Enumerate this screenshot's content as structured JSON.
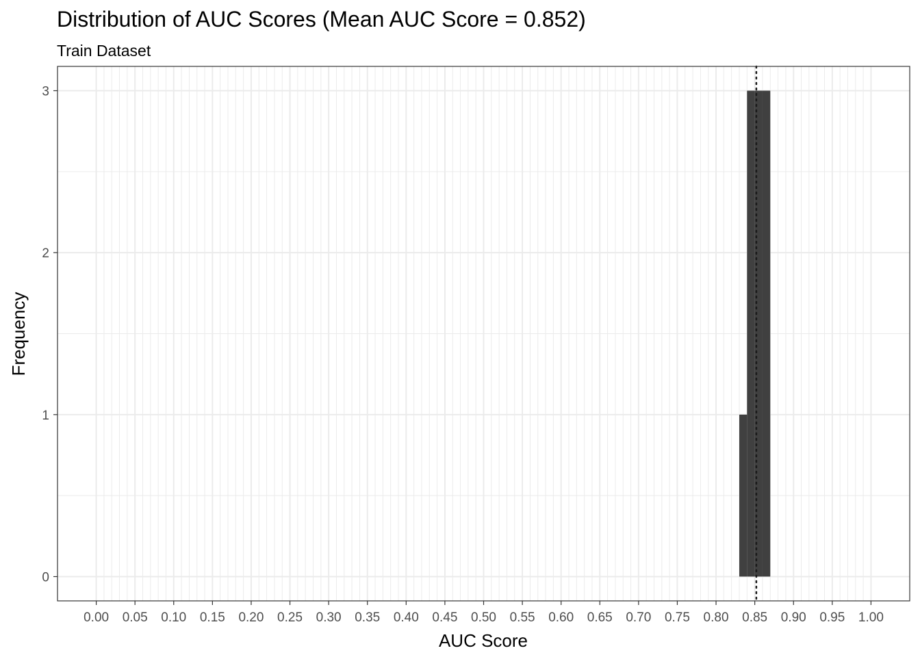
{
  "chart_data": {
    "type": "bar",
    "title": "Distribution of AUC Scores (Mean AUC Score = 0.852)",
    "subtitle": "Train Dataset",
    "xlabel": "AUC Score",
    "ylabel": "Frequency",
    "xlim": [
      -0.05,
      1.05
    ],
    "ylim": [
      -0.15,
      3.15
    ],
    "x_ticks": [
      "0.00",
      "0.05",
      "0.10",
      "0.15",
      "0.20",
      "0.25",
      "0.30",
      "0.35",
      "0.40",
      "0.45",
      "0.50",
      "0.55",
      "0.60",
      "0.65",
      "0.70",
      "0.75",
      "0.80",
      "0.85",
      "0.90",
      "0.95",
      "1.00"
    ],
    "y_ticks": [
      "0",
      "1",
      "2",
      "3"
    ],
    "bins": [
      {
        "x_start": 0.83,
        "x_end": 0.84,
        "count": 1
      },
      {
        "x_start": 0.84,
        "x_end": 0.85,
        "count": 3
      },
      {
        "x_start": 0.85,
        "x_end": 0.86,
        "count": 3
      },
      {
        "x_start": 0.86,
        "x_end": 0.87,
        "count": 3
      }
    ],
    "mean_line": {
      "value": 0.852,
      "style": "dotted"
    },
    "grid": true,
    "colors": {
      "bar": "#404040",
      "grid": "#ebebeb",
      "mean_line": "#1a1a1a",
      "panel_border": "#333333"
    }
  }
}
